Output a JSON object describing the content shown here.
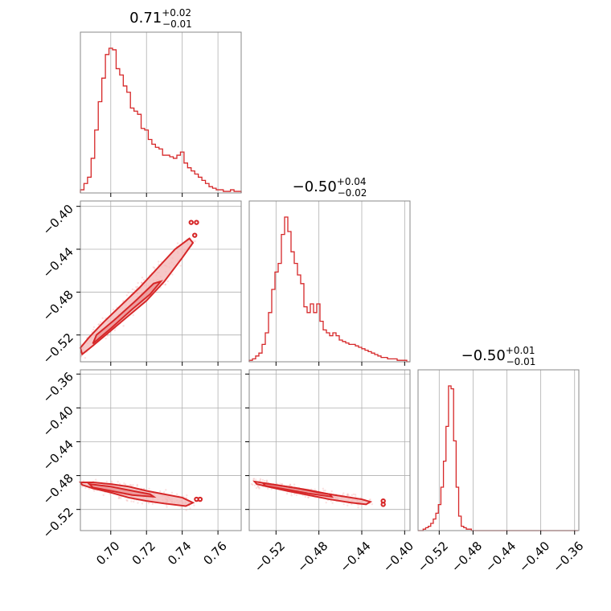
{
  "chart_data": {
    "type": "corner",
    "parameters": [
      "",
      "",
      ""
    ],
    "titles": [
      {
        "value": "0.71",
        "plus": "+0.02",
        "minus": "−0.01"
      },
      {
        "value": "−0.50",
        "plus": "+0.04",
        "minus": "−0.02"
      },
      {
        "value": "−0.50",
        "plus": "+0.01",
        "minus": "−0.01"
      }
    ],
    "ranges": [
      [
        0.683,
        0.773
      ],
      [
        -0.545,
        -0.395
      ],
      [
        -0.545,
        -0.355
      ]
    ],
    "ticks": [
      {
        "values": [
          0.7,
          0.72,
          0.74,
          0.76
        ],
        "labels": [
          "0.70",
          "0.72",
          "0.74",
          "0.76"
        ]
      },
      {
        "values": [
          -0.52,
          -0.48,
          -0.44,
          -0.4
        ],
        "labels": [
          "−0.52",
          "−0.48",
          "−0.44",
          "−0.40"
        ]
      },
      {
        "values": [
          -0.52,
          -0.48,
          -0.44,
          -0.4,
          -0.36
        ],
        "labels": [
          "−0.52",
          "−0.48",
          "−0.44",
          "−0.40",
          "−0.36"
        ]
      }
    ],
    "grid": true,
    "color": "#d62728",
    "histograms": [
      {
        "param": 0,
        "bins": [
          0.683,
          0.7,
          0.72,
          0.74,
          0.76,
          0.773
        ],
        "edges": [
          0.683,
          0.685,
          0.687,
          0.689,
          0.691,
          0.693,
          0.695,
          0.697,
          0.699,
          0.701,
          0.703,
          0.705,
          0.707,
          0.709,
          0.711,
          0.713,
          0.715,
          0.717,
          0.719,
          0.721,
          0.723,
          0.725,
          0.727,
          0.729,
          0.731,
          0.733,
          0.735,
          0.737,
          0.739,
          0.741,
          0.743,
          0.745,
          0.747,
          0.749,
          0.751,
          0.753,
          0.755,
          0.757,
          0.759,
          0.761,
          0.763,
          0.765,
          0.767,
          0.769,
          0.771,
          0.773
        ],
        "counts": [
          2,
          6,
          10,
          22,
          40,
          58,
          73,
          88,
          92,
          91,
          79,
          75,
          68,
          64,
          54,
          52,
          50,
          41,
          40,
          34,
          31,
          29,
          28,
          24,
          24,
          23,
          22,
          24,
          26,
          19,
          16,
          14,
          12,
          10,
          8,
          6,
          4,
          3,
          2,
          2,
          1,
          1,
          2,
          1,
          1
        ]
      },
      {
        "param": 1,
        "edges": [
          -0.545,
          -0.542,
          -0.539,
          -0.536,
          -0.533,
          -0.53,
          -0.527,
          -0.524,
          -0.521,
          -0.518,
          -0.515,
          -0.512,
          -0.509,
          -0.506,
          -0.503,
          -0.5,
          -0.497,
          -0.494,
          -0.491,
          -0.488,
          -0.485,
          -0.482,
          -0.479,
          -0.476,
          -0.473,
          -0.47,
          -0.467,
          -0.464,
          -0.461,
          -0.458,
          -0.455,
          -0.452,
          -0.449,
          -0.446,
          -0.443,
          -0.44,
          -0.437,
          -0.434,
          -0.431,
          -0.428,
          -0.425,
          -0.422,
          -0.419,
          -0.416,
          -0.413,
          -0.41,
          -0.407,
          -0.404,
          -0.401,
          -0.398,
          -0.395
        ],
        "counts": [
          1,
          2,
          4,
          6,
          12,
          20,
          34,
          50,
          62,
          68,
          88,
          100,
          90,
          76,
          68,
          60,
          54,
          38,
          34,
          40,
          34,
          40,
          28,
          22,
          20,
          18,
          20,
          18,
          15,
          14,
          13,
          12,
          12,
          11,
          10,
          9,
          8,
          7,
          6,
          5,
          4,
          3,
          3,
          2,
          2,
          2,
          1,
          1,
          1,
          0
        ]
      },
      {
        "param": 2,
        "edges": [
          -0.545,
          -0.542,
          -0.539,
          -0.536,
          -0.533,
          -0.53,
          -0.527,
          -0.524,
          -0.521,
          -0.518,
          -0.515,
          -0.512,
          -0.509,
          -0.506,
          -0.503,
          -0.5,
          -0.497,
          -0.494,
          -0.491,
          -0.488,
          -0.485,
          -0.482,
          -0.479,
          -0.476,
          -0.473,
          -0.47,
          -0.467,
          -0.464,
          -0.461,
          -0.458,
          -0.455,
          -0.452,
          -0.449,
          -0.446,
          -0.443,
          -0.44,
          -0.437,
          -0.434,
          -0.431,
          -0.428,
          -0.425,
          -0.422,
          -0.419,
          -0.416,
          -0.413,
          -0.41,
          -0.407,
          -0.404,
          -0.401,
          -0.398,
          -0.395,
          -0.392,
          -0.389,
          -0.386,
          -0.383,
          -0.38,
          -0.377,
          -0.374,
          -0.371,
          -0.368,
          -0.365,
          -0.362,
          -0.359,
          -0.356
        ],
        "counts": [
          0,
          0,
          1,
          2,
          3,
          5,
          8,
          12,
          18,
          30,
          48,
          72,
          100,
          98,
          62,
          30,
          10,
          3,
          2,
          1,
          1,
          0,
          0,
          0,
          0,
          0,
          0,
          0,
          0,
          0,
          0,
          0,
          0,
          0,
          0,
          0,
          0,
          0,
          0,
          0,
          0,
          0,
          0,
          0,
          0,
          0,
          0,
          0,
          0,
          0,
          0,
          0,
          0,
          0,
          0,
          0,
          0,
          0,
          0,
          0,
          0,
          0,
          0
        ]
      }
    ],
    "pairs": [
      {
        "x_param": 0,
        "y_param": 1,
        "outer": [
          [
            0.684,
            -0.538
          ],
          [
            0.69,
            -0.53
          ],
          [
            0.7,
            -0.516
          ],
          [
            0.71,
            -0.502
          ],
          [
            0.72,
            -0.488
          ],
          [
            0.73,
            -0.47
          ],
          [
            0.74,
            -0.448
          ],
          [
            0.746,
            -0.434
          ],
          [
            0.744,
            -0.43
          ],
          [
            0.736,
            -0.44
          ],
          [
            0.726,
            -0.458
          ],
          [
            0.716,
            -0.476
          ],
          [
            0.706,
            -0.492
          ],
          [
            0.696,
            -0.508
          ],
          [
            0.688,
            -0.522
          ],
          [
            0.683,
            -0.532
          ]
        ],
        "inner": [
          [
            0.69,
            -0.528
          ],
          [
            0.7,
            -0.514
          ],
          [
            0.712,
            -0.496
          ],
          [
            0.722,
            -0.482
          ],
          [
            0.728,
            -0.47
          ],
          [
            0.724,
            -0.472
          ],
          [
            0.714,
            -0.488
          ],
          [
            0.702,
            -0.506
          ],
          [
            0.692,
            -0.52
          ]
        ],
        "islands": [
          [
            0.745,
            -0.415
          ],
          [
            0.748,
            -0.415
          ],
          [
            0.747,
            -0.427
          ]
        ]
      },
      {
        "x_param": 0,
        "y_param": 2,
        "outer": [
          [
            0.683,
            -0.488
          ],
          [
            0.69,
            -0.488
          ],
          [
            0.7,
            -0.49
          ],
          [
            0.71,
            -0.493
          ],
          [
            0.72,
            -0.498
          ],
          [
            0.73,
            -0.502
          ],
          [
            0.74,
            -0.506
          ],
          [
            0.746,
            -0.512
          ],
          [
            0.742,
            -0.516
          ],
          [
            0.73,
            -0.513
          ],
          [
            0.72,
            -0.51
          ],
          [
            0.71,
            -0.506
          ],
          [
            0.7,
            -0.5
          ],
          [
            0.69,
            -0.495
          ],
          [
            0.684,
            -0.491
          ]
        ],
        "inner": [
          [
            0.688,
            -0.49
          ],
          [
            0.7,
            -0.493
          ],
          [
            0.712,
            -0.498
          ],
          [
            0.722,
            -0.502
          ],
          [
            0.724,
            -0.505
          ],
          [
            0.712,
            -0.503
          ],
          [
            0.7,
            -0.498
          ],
          [
            0.69,
            -0.494
          ]
        ],
        "islands": [
          [
            0.748,
            -0.508
          ],
          [
            0.75,
            -0.508
          ]
        ]
      },
      {
        "x_param": 1,
        "y_param": 2,
        "outer": [
          [
            -0.54,
            -0.487
          ],
          [
            -0.53,
            -0.489
          ],
          [
            -0.52,
            -0.491
          ],
          [
            -0.5,
            -0.495
          ],
          [
            -0.48,
            -0.5
          ],
          [
            -0.46,
            -0.504
          ],
          [
            -0.44,
            -0.508
          ],
          [
            -0.432,
            -0.511
          ],
          [
            -0.436,
            -0.514
          ],
          [
            -0.45,
            -0.512
          ],
          [
            -0.47,
            -0.508
          ],
          [
            -0.49,
            -0.503
          ],
          [
            -0.51,
            -0.498
          ],
          [
            -0.528,
            -0.493
          ],
          [
            -0.538,
            -0.49
          ]
        ],
        "inner": [
          [
            -0.532,
            -0.489
          ],
          [
            -0.51,
            -0.493
          ],
          [
            -0.49,
            -0.497
          ],
          [
            -0.47,
            -0.502
          ],
          [
            -0.468,
            -0.505
          ],
          [
            -0.49,
            -0.501
          ],
          [
            -0.512,
            -0.496
          ],
          [
            -0.53,
            -0.492
          ]
        ],
        "islands": [
          [
            -0.42,
            -0.51
          ],
          [
            -0.42,
            -0.514
          ]
        ]
      }
    ]
  }
}
